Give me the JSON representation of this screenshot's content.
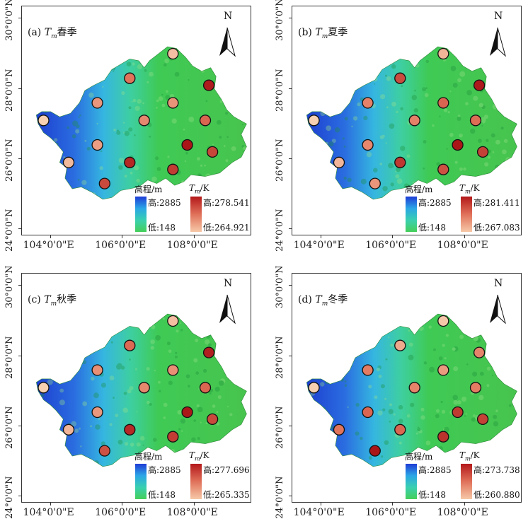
{
  "axes": {
    "y_ticks": [
      "30°0'0\"N",
      "28°0'0\"N",
      "26°0'0\"N",
      "24°0'0\"N"
    ],
    "x_ticks": [
      "104°0'0\"E",
      "106°0'0\"E",
      "108°0'0\"E"
    ]
  },
  "legend": {
    "elev_title": "高程/m",
    "elev_high_label": "高",
    "elev_low_label": "低",
    "tm_title_var": "T",
    "tm_title_sub": "m",
    "tm_title_unit": "/K",
    "tm_high_label": "高",
    "tm_low_label": "低",
    "elev_colors": [
      "#1f3cd6",
      "#2aa6e6",
      "#39d0b0",
      "#45cf5a"
    ],
    "tm_colors": [
      "#b3181a",
      "#e0715a",
      "#f6c9a8"
    ]
  },
  "north": {
    "label": "N"
  },
  "colors": {
    "map_green": "#3fca55",
    "map_blue_w": "#1e3fd0",
    "map_cyan": "#35b6e0"
  },
  "panels": [
    {
      "id": "a",
      "tag": "(a) ",
      "var": "T",
      "sub": "m",
      "season": "春季",
      "elev_high": "2885",
      "elev_low": "148",
      "tm_high": "278.541",
      "tm_low": "264.921",
      "stations": [
        {
          "lon": 103.8,
          "lat": 27.1,
          "v": 264.9
        },
        {
          "lon": 104.5,
          "lat": 25.9,
          "v": 266.5
        },
        {
          "lon": 105.3,
          "lat": 27.6,
          "v": 269.0
        },
        {
          "lon": 105.3,
          "lat": 26.4,
          "v": 268.5
        },
        {
          "lon": 105.5,
          "lat": 25.3,
          "v": 274.5
        },
        {
          "lon": 106.2,
          "lat": 28.3,
          "v": 271.5
        },
        {
          "lon": 106.2,
          "lat": 25.9,
          "v": 277.0
        },
        {
          "lon": 106.6,
          "lat": 27.1,
          "v": 270.0
        },
        {
          "lon": 107.4,
          "lat": 29.0,
          "v": 266.2
        },
        {
          "lon": 107.4,
          "lat": 27.6,
          "v": 269.2
        },
        {
          "lon": 107.4,
          "lat": 25.7,
          "v": 275.5
        },
        {
          "lon": 107.8,
          "lat": 26.4,
          "v": 278.3
        },
        {
          "lon": 108.3,
          "lat": 27.1,
          "v": 272.5
        },
        {
          "lon": 108.4,
          "lat": 28.1,
          "v": 277.8
        },
        {
          "lon": 108.5,
          "lat": 26.2,
          "v": 274.8
        }
      ]
    },
    {
      "id": "b",
      "tag": "(b) ",
      "var": "T",
      "sub": "m",
      "season": "夏季",
      "elev_high": "2885",
      "elev_low": "148",
      "tm_high": "281.411",
      "tm_low": "267.083",
      "stations": [
        {
          "lon": 103.8,
          "lat": 27.1,
          "v": 267.1
        },
        {
          "lon": 104.5,
          "lat": 25.9,
          "v": 269.0
        },
        {
          "lon": 105.3,
          "lat": 27.6,
          "v": 273.0
        },
        {
          "lon": 105.3,
          "lat": 26.4,
          "v": 272.5
        },
        {
          "lon": 105.5,
          "lat": 25.3,
          "v": 271.5
        },
        {
          "lon": 106.2,
          "lat": 28.3,
          "v": 277.0
        },
        {
          "lon": 106.2,
          "lat": 25.9,
          "v": 278.5
        },
        {
          "lon": 106.6,
          "lat": 27.1,
          "v": 273.0
        },
        {
          "lon": 107.4,
          "lat": 29.0,
          "v": 269.2
        },
        {
          "lon": 107.4,
          "lat": 27.6,
          "v": 275.0
        },
        {
          "lon": 107.4,
          "lat": 25.7,
          "v": 276.5
        },
        {
          "lon": 107.8,
          "lat": 26.4,
          "v": 281.2
        },
        {
          "lon": 108.3,
          "lat": 27.1,
          "v": 274.5
        },
        {
          "lon": 108.4,
          "lat": 28.1,
          "v": 280.8
        },
        {
          "lon": 108.5,
          "lat": 26.2,
          "v": 277.8
        }
      ]
    },
    {
      "id": "c",
      "tag": "(c) ",
      "var": "T",
      "sub": "m",
      "season": "秋季",
      "elev_high": "2885",
      "elev_low": "148",
      "tm_high": "277.696",
      "tm_low": "265.335",
      "stations": [
        {
          "lon": 103.8,
          "lat": 27.1,
          "v": 265.4
        },
        {
          "lon": 104.5,
          "lat": 25.9,
          "v": 267.0
        },
        {
          "lon": 105.3,
          "lat": 27.6,
          "v": 269.5
        },
        {
          "lon": 105.3,
          "lat": 26.4,
          "v": 269.0
        },
        {
          "lon": 105.5,
          "lat": 25.3,
          "v": 273.5
        },
        {
          "lon": 106.2,
          "lat": 28.3,
          "v": 272.0
        },
        {
          "lon": 106.2,
          "lat": 25.9,
          "v": 276.2
        },
        {
          "lon": 106.6,
          "lat": 27.1,
          "v": 270.0
        },
        {
          "lon": 107.4,
          "lat": 29.0,
          "v": 266.5
        },
        {
          "lon": 107.4,
          "lat": 27.6,
          "v": 269.5
        },
        {
          "lon": 107.4,
          "lat": 25.7,
          "v": 274.8
        },
        {
          "lon": 107.8,
          "lat": 26.4,
          "v": 277.4
        },
        {
          "lon": 108.3,
          "lat": 27.1,
          "v": 272.2
        },
        {
          "lon": 108.4,
          "lat": 28.1,
          "v": 276.8
        },
        {
          "lon": 108.5,
          "lat": 26.2,
          "v": 274.0
        }
      ]
    },
    {
      "id": "d",
      "tag": "(d) ",
      "var": "T",
      "sub": "m",
      "season": "冬季",
      "elev_high": "2885",
      "elev_low": "148",
      "tm_high": "273.738",
      "tm_low": "260.880",
      "stations": [
        {
          "lon": 103.8,
          "lat": 27.1,
          "v": 260.9
        },
        {
          "lon": 104.5,
          "lat": 25.9,
          "v": 267.0
        },
        {
          "lon": 105.3,
          "lat": 27.6,
          "v": 266.5
        },
        {
          "lon": 105.3,
          "lat": 26.4,
          "v": 268.0
        },
        {
          "lon": 105.5,
          "lat": 25.3,
          "v": 273.5
        },
        {
          "lon": 106.2,
          "lat": 28.3,
          "v": 263.5
        },
        {
          "lon": 106.2,
          "lat": 25.9,
          "v": 268.0
        },
        {
          "lon": 106.6,
          "lat": 27.1,
          "v": 266.0
        },
        {
          "lon": 107.4,
          "lat": 29.0,
          "v": 261.5
        },
        {
          "lon": 107.4,
          "lat": 27.6,
          "v": 264.5
        },
        {
          "lon": 107.4,
          "lat": 25.7,
          "v": 271.5
        },
        {
          "lon": 107.8,
          "lat": 26.4,
          "v": 271.0
        },
        {
          "lon": 108.3,
          "lat": 27.1,
          "v": 266.5
        },
        {
          "lon": 108.4,
          "lat": 28.1,
          "v": 266.0
        },
        {
          "lon": 108.5,
          "lat": 26.2,
          "v": 270.5
        }
      ]
    }
  ]
}
